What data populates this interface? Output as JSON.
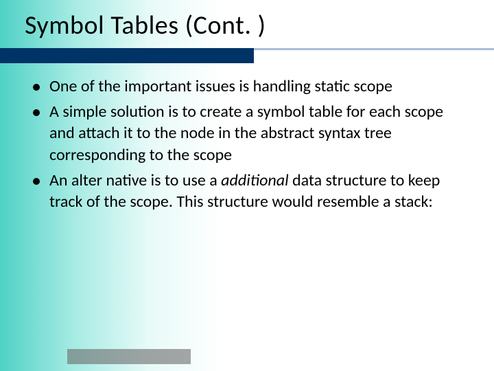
{
  "slide": {
    "title": "Symbol Tables (Cont. )",
    "title_fontsize": 38,
    "title_color": "#000000",
    "header_bar_color": "#003366",
    "header_line_color": "#a9bdd6",
    "background_gradient": [
      "#4fd1c5",
      "#a7ebe4",
      "#e6faf8",
      "#ffffff"
    ],
    "footer_bar_color": "#6a6a6a",
    "bullets": [
      {
        "text": "One of the important issues is handling static scope"
      },
      {
        "text": "A simple solution is to create a symbol table for each scope and attach it to the node in the abstract syntax tree corresponding to the scope"
      },
      {
        "prefix": "An alter native is to use a ",
        "emph": "additional",
        "suffix": " data structure to keep track of the scope. This structure would resemble a stack:"
      }
    ],
    "bullet_fontsize": 24,
    "bullet_color": "#000000",
    "bullet_dot_color": "#000000"
  }
}
